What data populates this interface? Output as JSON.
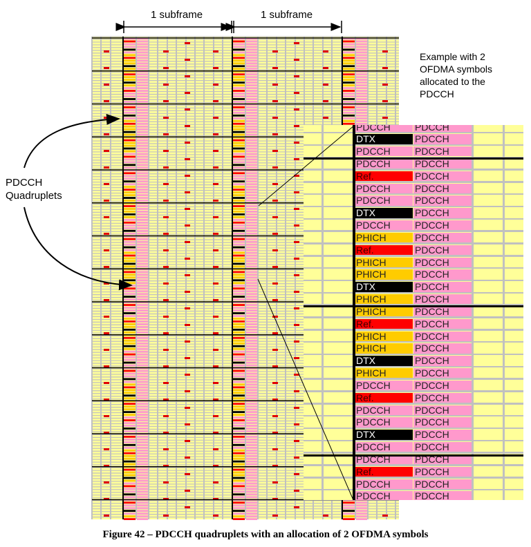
{
  "header": {
    "subframe_left": "1 subframe",
    "subframe_right": "1 subframe"
  },
  "note": {
    "lines": [
      "Example with 2",
      "OFDMA symbols",
      "allocated to the",
      "PDCCH"
    ]
  },
  "callout": {
    "lines": [
      "PDCCH",
      "Quadruplets"
    ]
  },
  "caption": "Figure 42 – PDCCH quadruplets with an allocation of 2 OFDMA symbols",
  "zoom_panel": {
    "column_1": [
      "PDCCH",
      "DTX",
      "PDCCH",
      "PDCCH",
      "Ref.",
      "PDCCH",
      "PDCCH",
      "DTX",
      "PDCCH",
      "PHICH",
      "Ref.",
      "PHICH",
      "PHICH",
      "DTX",
      "PHICH",
      "PHICH",
      "Ref.",
      "PHICH",
      "PHICH",
      "DTX",
      "PHICH",
      "PDCCH",
      "Ref.",
      "PDCCH",
      "PDCCH",
      "DTX",
      "PDCCH",
      "PDCCH",
      "Ref.",
      "PDCCH",
      "PDCCH"
    ],
    "column_2_label": "PDCCH"
  },
  "colors": {
    "PDCCH": "#ff99cc",
    "DTX": "#000000",
    "Ref.": "#ff0000",
    "PHICH": "#ffcc00",
    "data_re": "#ffff99",
    "grid": "#c0c0c0"
  }
}
